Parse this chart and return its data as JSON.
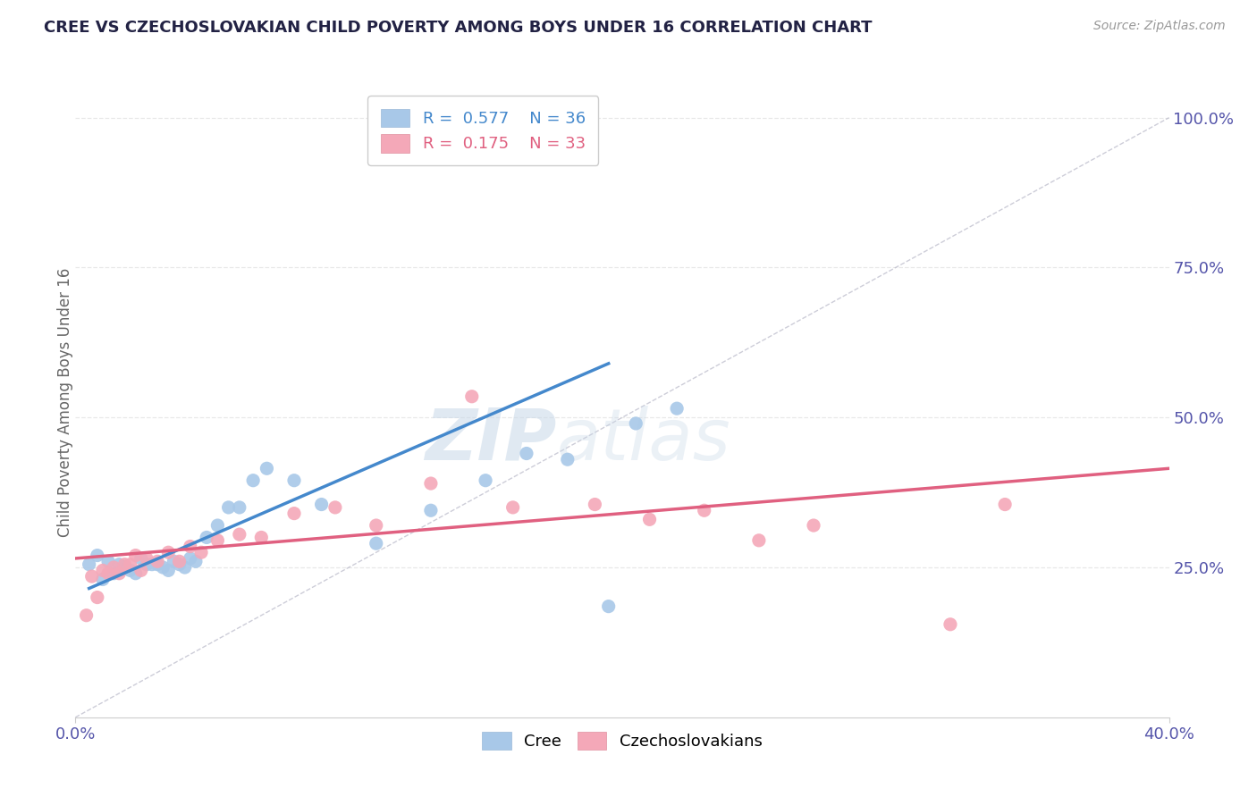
{
  "title": "CREE VS CZECHOSLOVAKIAN CHILD POVERTY AMONG BOYS UNDER 16 CORRELATION CHART",
  "source": "Source: ZipAtlas.com",
  "ylabel": "Child Poverty Among Boys Under 16",
  "xlim": [
    0.0,
    0.4
  ],
  "ylim": [
    0.0,
    1.05
  ],
  "ytick_positions": [
    0.25,
    0.5,
    0.75,
    1.0
  ],
  "ytick_labels": [
    "25.0%",
    "50.0%",
    "75.0%",
    "100.0%"
  ],
  "cree_color": "#a8c8e8",
  "czech_color": "#f4a8b8",
  "cree_line_color": "#4488cc",
  "czech_line_color": "#e06080",
  "ref_line_color": "#b8b8c8",
  "watermark_zip": "ZIP",
  "watermark_atlas": "atlas",
  "cree_scatter_x": [
    0.005,
    0.008,
    0.01,
    0.012,
    0.014,
    0.016,
    0.018,
    0.02,
    0.022,
    0.024,
    0.026,
    0.028,
    0.03,
    0.032,
    0.034,
    0.036,
    0.038,
    0.04,
    0.042,
    0.044,
    0.048,
    0.052,
    0.056,
    0.06,
    0.065,
    0.07,
    0.08,
    0.09,
    0.11,
    0.13,
    0.15,
    0.165,
    0.18,
    0.195,
    0.205,
    0.22
  ],
  "cree_scatter_y": [
    0.255,
    0.27,
    0.23,
    0.26,
    0.24,
    0.255,
    0.25,
    0.245,
    0.24,
    0.265,
    0.255,
    0.255,
    0.255,
    0.25,
    0.245,
    0.26,
    0.255,
    0.25,
    0.265,
    0.26,
    0.3,
    0.32,
    0.35,
    0.35,
    0.395,
    0.415,
    0.395,
    0.355,
    0.29,
    0.345,
    0.395,
    0.44,
    0.43,
    0.185,
    0.49,
    0.515
  ],
  "czech_scatter_x": [
    0.004,
    0.006,
    0.008,
    0.01,
    0.012,
    0.014,
    0.016,
    0.018,
    0.02,
    0.022,
    0.024,
    0.026,
    0.03,
    0.034,
    0.038,
    0.042,
    0.046,
    0.052,
    0.06,
    0.068,
    0.08,
    0.095,
    0.11,
    0.13,
    0.145,
    0.16,
    0.19,
    0.21,
    0.23,
    0.25,
    0.27,
    0.32,
    0.34
  ],
  "czech_scatter_y": [
    0.17,
    0.235,
    0.2,
    0.245,
    0.24,
    0.25,
    0.24,
    0.255,
    0.255,
    0.27,
    0.245,
    0.265,
    0.26,
    0.275,
    0.26,
    0.285,
    0.275,
    0.295,
    0.305,
    0.3,
    0.34,
    0.35,
    0.32,
    0.39,
    0.535,
    0.35,
    0.355,
    0.33,
    0.345,
    0.295,
    0.32,
    0.155,
    0.355
  ],
  "cree_trend_x": [
    0.005,
    0.195
  ],
  "cree_trend_y": [
    0.215,
    0.59
  ],
  "czech_trend_x": [
    0.0,
    0.4
  ],
  "czech_trend_y": [
    0.265,
    0.415
  ],
  "ref_line_x": [
    0.0,
    0.4
  ],
  "ref_line_y": [
    0.0,
    1.0
  ],
  "background_color": "#ffffff",
  "grid_color": "#e8e8e8"
}
